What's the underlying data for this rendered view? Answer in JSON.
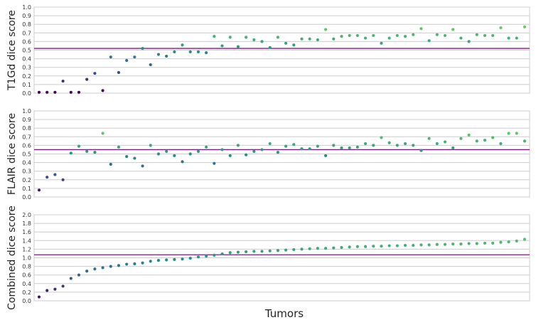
{
  "xlabel": "Tumors",
  "colormap": [
    "#440154",
    "#3b528b",
    "#21918c",
    "#5ec962",
    "#fde725"
  ],
  "mean_line_color": "#7b1f7a",
  "chart_data": [
    {
      "type": "scatter",
      "ylabel": "T1Gd dice score",
      "ylim": [
        0,
        1.0
      ],
      "yticks": [
        "0.0",
        "0.1",
        "0.2",
        "0.3",
        "0.4",
        "0.5",
        "0.6",
        "0.7",
        "0.8",
        "0.9",
        "1.0"
      ],
      "grid": true,
      "mean": 0.52,
      "y": [
        0.01,
        0.01,
        0.01,
        0.14,
        0.01,
        0.01,
        0.16,
        0.23,
        0.03,
        0.42,
        0.24,
        0.38,
        0.42,
        0.52,
        0.33,
        0.45,
        0.43,
        0.48,
        0.56,
        0.48,
        0.48,
        0.47,
        0.66,
        0.55,
        0.65,
        0.54,
        0.65,
        0.62,
        0.6,
        0.53,
        0.65,
        0.58,
        0.56,
        0.63,
        0.63,
        0.62,
        0.74,
        0.63,
        0.66,
        0.67,
        0.67,
        0.64,
        0.67,
        0.58,
        0.64,
        0.67,
        0.66,
        0.68,
        0.75,
        0.61,
        0.68,
        0.67,
        0.74,
        0.64,
        0.6,
        0.68,
        0.67,
        0.67,
        0.76,
        0.64,
        0.64,
        0.77
      ]
    },
    {
      "type": "scatter",
      "ylabel": "FLAIR dice score",
      "ylim": [
        0,
        1.0
      ],
      "yticks": [
        "0.0",
        "0.1",
        "0.2",
        "0.3",
        "0.4",
        "0.5",
        "0.6",
        "0.7",
        "0.8",
        "0.9",
        "1.0"
      ],
      "grid": true,
      "mean": 0.55,
      "y": [
        0.08,
        0.23,
        0.26,
        0.2,
        0.51,
        0.59,
        0.53,
        0.52,
        0.74,
        0.38,
        0.58,
        0.47,
        0.45,
        0.36,
        0.6,
        0.5,
        0.53,
        0.48,
        0.41,
        0.5,
        0.53,
        0.58,
        0.39,
        0.55,
        0.48,
        0.6,
        0.49,
        0.53,
        0.55,
        0.62,
        0.52,
        0.59,
        0.61,
        0.56,
        0.56,
        0.59,
        0.48,
        0.6,
        0.57,
        0.57,
        0.58,
        0.62,
        0.6,
        0.69,
        0.63,
        0.6,
        0.62,
        0.6,
        0.54,
        0.68,
        0.62,
        0.64,
        0.57,
        0.68,
        0.72,
        0.65,
        0.66,
        0.69,
        0.62,
        0.74,
        0.74,
        0.65
      ]
    },
    {
      "type": "scatter",
      "ylabel": "Combined dice score",
      "ylim": [
        0,
        2.0
      ],
      "yticks": [
        "0.0",
        "0.2",
        "0.4",
        "0.6",
        "0.8",
        "1.0",
        "1.2",
        "1.4",
        "1.6",
        "1.8",
        "2.0"
      ],
      "grid": true,
      "mean": 1.07,
      "y": [
        0.09,
        0.24,
        0.27,
        0.34,
        0.52,
        0.6,
        0.69,
        0.74,
        0.77,
        0.8,
        0.82,
        0.85,
        0.86,
        0.88,
        0.92,
        0.94,
        0.95,
        0.96,
        0.97,
        0.99,
        1.02,
        1.04,
        1.06,
        1.09,
        1.12,
        1.13,
        1.14,
        1.15,
        1.15,
        1.16,
        1.17,
        1.18,
        1.19,
        1.2,
        1.21,
        1.22,
        1.22,
        1.23,
        1.24,
        1.25,
        1.26,
        1.26,
        1.27,
        1.27,
        1.28,
        1.28,
        1.29,
        1.29,
        1.3,
        1.3,
        1.31,
        1.31,
        1.32,
        1.32,
        1.33,
        1.33,
        1.34,
        1.34,
        1.36,
        1.37,
        1.39,
        1.43
      ]
    }
  ]
}
